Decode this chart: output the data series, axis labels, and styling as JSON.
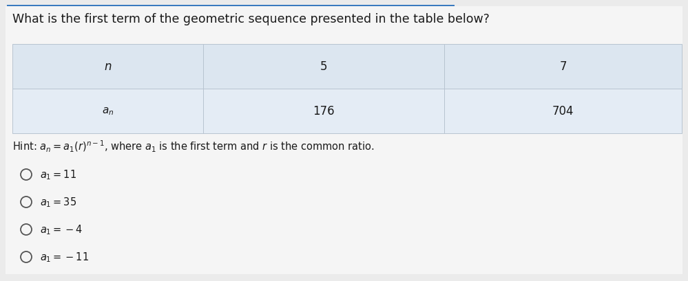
{
  "title": "What is the first term of the geometric sequence presented in the table below?",
  "title_fontsize": 12.5,
  "bg_color": "#ebebeb",
  "content_bg": "#f4f4f4",
  "top_bar_color": "#3a7abf",
  "table": {
    "row1_bg": "#dce6f0",
    "row2_bg": "#e4ecf5",
    "border_color": "#b8c4d0",
    "cell_fontsize": 12
  },
  "hint_fontsize": 10.5,
  "option_fontsize": 10.5,
  "text_color": "#1a1a1a",
  "circle_color": "#555555"
}
